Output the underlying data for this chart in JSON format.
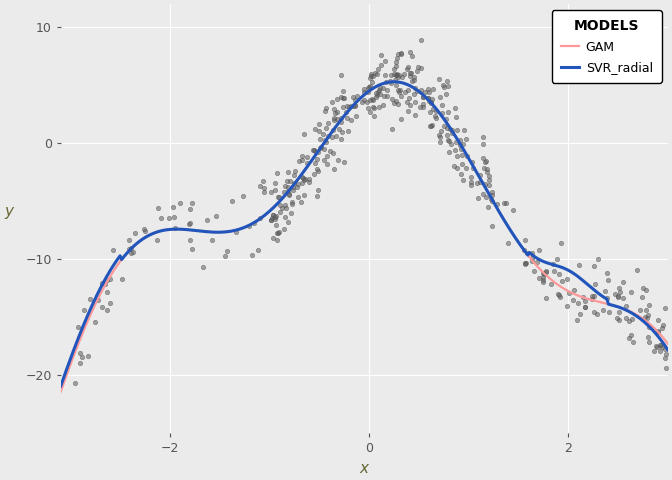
{
  "title": "",
  "xlabel": "x",
  "ylabel": "y",
  "xlim": [
    -3.1,
    3.0
  ],
  "ylim": [
    -25,
    12
  ],
  "background_color": "#EBEBEB",
  "grid_color": "#FFFFFF",
  "scatter_color": "#606060",
  "scatter_alpha": 0.55,
  "scatter_size": 10,
  "gam_color": "#FF9999",
  "svr_color": "#2255BB",
  "gam_linewidth": 1.6,
  "svr_linewidth": 2.2,
  "legend_title": "MODELS",
  "legend_labels": [
    "GAM",
    "SVR_radial"
  ],
  "xticks": [
    -2,
    0,
    2
  ],
  "yticks": [
    -20,
    -10,
    0,
    10
  ],
  "n_points": 500,
  "seed": 42
}
